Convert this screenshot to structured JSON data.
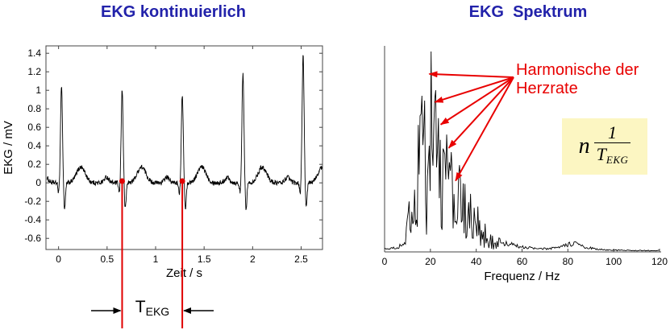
{
  "page": {
    "background": "#ffffff"
  },
  "titles": {
    "left": "EKG kontinuierlich",
    "right": "EKG  Spektrum",
    "color": "#2222aa"
  },
  "annotations": {
    "harmonics_line1": "Harmonische der",
    "harmonics_line2": "Herzrate",
    "red": "#e80000",
    "formula": {
      "coeff": "n",
      "numerator": "1",
      "denom_main": "T",
      "denom_sub": "EKG",
      "box_color": "#fcf6c2"
    },
    "period": {
      "main": "T",
      "sub": "EKG"
    }
  },
  "chart_data": [
    {
      "type": "line",
      "title": "EKG kontinuierlich",
      "xlabel": "Zeit / s",
      "ylabel": "EKG / mV",
      "xlim": [
        -0.13,
        2.72
      ],
      "ylim": [
        -0.72,
        1.48
      ],
      "xticks": [
        0,
        0.5,
        1,
        1.5,
        2,
        2.5
      ],
      "yticks": [
        1.4,
        1.2,
        1,
        0.8,
        0.6,
        0.4,
        0.2,
        0,
        -0.2,
        -0.4,
        -0.6
      ],
      "line_color": "#000000",
      "marker_color": "#e00000",
      "beats": {
        "times": [
          0.03,
          0.655,
          1.275,
          1.9,
          2.52
        ],
        "r_peaks": [
          1.05,
          1.0,
          0.95,
          1.18,
          1.38
        ],
        "period_s": 0.62
      },
      "period_marker_times": [
        0.655,
        1.275
      ]
    },
    {
      "type": "line",
      "title": "EKG Spektrum",
      "xlabel": "Frequenz / Hz",
      "ylabel": "",
      "xlim": [
        0,
        120
      ],
      "ylim": [
        0,
        1.1
      ],
      "xticks": [
        0,
        20,
        40,
        60,
        80,
        100,
        120
      ],
      "line_color": "#000000",
      "envelope": [
        [
          0,
          0.02
        ],
        [
          6,
          0.03
        ],
        [
          9,
          0.08
        ],
        [
          11,
          0.3
        ],
        [
          13,
          0.55
        ],
        [
          15,
          0.8
        ],
        [
          17,
          0.95
        ],
        [
          19,
          0.85
        ],
        [
          20,
          1.0
        ],
        [
          22,
          0.85
        ],
        [
          24,
          0.8
        ],
        [
          26,
          0.68
        ],
        [
          28,
          0.6
        ],
        [
          30,
          0.52
        ],
        [
          33,
          0.44
        ],
        [
          36,
          0.33
        ],
        [
          40,
          0.25
        ],
        [
          44,
          0.15
        ],
        [
          48,
          0.09
        ],
        [
          53,
          0.06
        ],
        [
          60,
          0.035
        ],
        [
          68,
          0.02
        ],
        [
          76,
          0.03
        ],
        [
          80,
          0.05
        ],
        [
          83,
          0.06
        ],
        [
          86,
          0.04
        ],
        [
          92,
          0.02
        ],
        [
          100,
          0.012
        ],
        [
          110,
          0.01
        ],
        [
          120,
          0.01
        ]
      ],
      "main_spike": {
        "hz": 20.4,
        "value": 1.07
      },
      "harmonic_arrows": [
        {
          "hz": 19.5,
          "value": 0.95
        },
        {
          "hz": 22.0,
          "value": 0.8
        },
        {
          "hz": 24.5,
          "value": 0.68
        },
        {
          "hz": 28.0,
          "value": 0.555
        },
        {
          "hz": 31.0,
          "value": 0.38
        }
      ]
    }
  ]
}
